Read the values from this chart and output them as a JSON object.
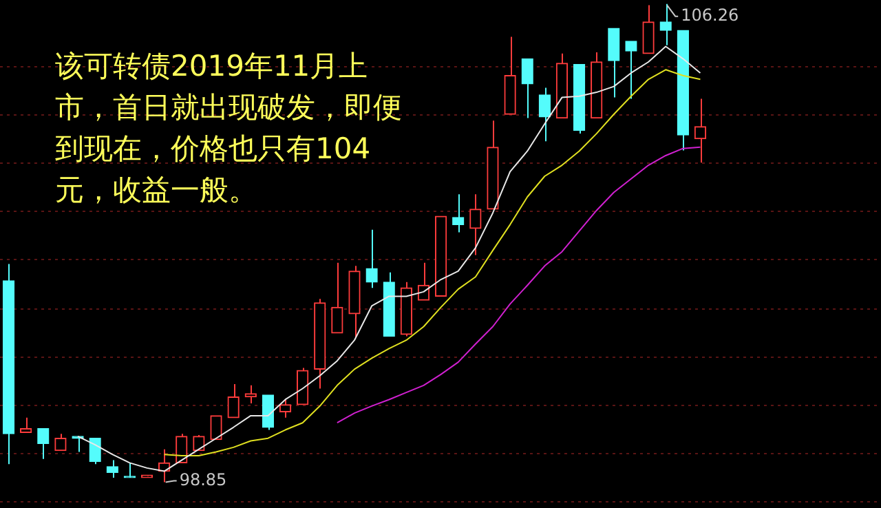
{
  "chart_data": {
    "type": "candlestick",
    "categories": [
      null,
      null,
      null,
      null,
      null,
      null,
      null,
      null,
      null,
      null,
      null,
      null,
      null,
      null,
      null,
      null,
      null,
      null,
      null,
      null,
      null,
      null,
      null,
      null,
      null,
      null,
      null,
      null,
      null,
      null,
      null,
      null,
      null,
      null,
      null,
      null,
      null,
      null,
      null,
      null,
      null
    ],
    "ohlc": [
      [
        101.97,
        102.23,
        99.13,
        99.6
      ],
      [
        99.62,
        99.85,
        99.62,
        99.68
      ],
      [
        99.68,
        99.68,
        99.21,
        99.45
      ],
      [
        99.34,
        99.6,
        99.34,
        99.53
      ],
      [
        99.56,
        99.56,
        99.32,
        99.53
      ],
      [
        99.53,
        99.53,
        99.13,
        99.17
      ],
      [
        99.09,
        99.19,
        98.92,
        99.0
      ],
      [
        98.94,
        99.15,
        98.92,
        98.92
      ],
      [
        98.92,
        98.96,
        98.92,
        98.96
      ],
      [
        99.02,
        99.36,
        98.85,
        99.15
      ],
      [
        99.15,
        99.6,
        99.15,
        99.56
      ],
      [
        99.34,
        99.58,
        99.34,
        99.56
      ],
      [
        99.51,
        99.88,
        99.51,
        99.88
      ],
      [
        99.85,
        100.37,
        99.85,
        100.17
      ],
      [
        100.17,
        100.35,
        100.07,
        100.22
      ],
      [
        100.2,
        100.2,
        99.66,
        99.7
      ],
      [
        99.94,
        100.13,
        99.85,
        100.05
      ],
      [
        100.05,
        100.62,
        100.05,
        100.58
      ],
      [
        100.6,
        101.69,
        100.3,
        101.63
      ],
      [
        101.16,
        102.25,
        101.16,
        101.56
      ],
      [
        101.46,
        102.2,
        101.09,
        102.12
      ],
      [
        102.16,
        102.76,
        101.86,
        101.95
      ],
      [
        101.95,
        102.1,
        101.11,
        101.11
      ],
      [
        101.14,
        101.95,
        101.11,
        101.86
      ],
      [
        101.67,
        102.25,
        101.67,
        101.9
      ],
      [
        101.73,
        102.97,
        101.73,
        102.97
      ],
      [
        102.95,
        103.31,
        102.72,
        102.84
      ],
      [
        102.78,
        103.31,
        102.37,
        103.08
      ],
      [
        103.08,
        104.45,
        103.08,
        104.04
      ],
      [
        104.55,
        105.75,
        104.55,
        105.15
      ],
      [
        105.41,
        105.41,
        104.49,
        105.02
      ],
      [
        104.85,
        104.96,
        104.13,
        104.51
      ],
      [
        104.49,
        105.49,
        104.49,
        105.34
      ],
      [
        105.32,
        105.32,
        104.25,
        104.3
      ],
      [
        104.49,
        105.51,
        104.49,
        105.36
      ],
      [
        105.88,
        105.88,
        104.81,
        105.38
      ],
      [
        105.68,
        105.68,
        104.79,
        105.53
      ],
      [
        105.49,
        106.24,
        105.49,
        105.98
      ],
      [
        105.98,
        106.26,
        105.62,
        105.85
      ],
      [
        105.85,
        105.85,
        103.99,
        104.23
      ],
      [
        104.17,
        104.79,
        103.8,
        104.36
      ]
    ],
    "colors": [
      "#54fcfc",
      "#ff3c3c",
      "#54fcfc",
      "#ff3c3c",
      "#54fcfc",
      "#54fcfc",
      "#54fcfc",
      "#54fcfc",
      "#ff3c3c",
      "#ff3c3c",
      "#ff3c3c",
      "#ff3c3c",
      "#ff3c3c",
      "#ff3c3c",
      "#ff3c3c",
      "#54fcfc",
      "#ff3c3c",
      "#ff3c3c",
      "#ff3c3c",
      "#ff3c3c",
      "#ff3c3c",
      "#54fcfc",
      "#54fcfc",
      "#ff3c3c",
      "#ff3c3c",
      "#ff3c3c",
      "#54fcfc",
      "#ff3c3c",
      "#ff3c3c",
      "#ff3c3c",
      "#54fcfc",
      "#54fcfc",
      "#ff3c3c",
      "#54fcfc",
      "#ff3c3c",
      "#54fcfc",
      "#54fcfc",
      "#ff3c3c",
      "#54fcfc",
      "#54fcfc",
      "#ff3c3c"
    ],
    "series": [
      {
        "type": "line",
        "color": "#e8e8e8",
        "values": [
          null,
          null,
          null,
          null,
          99.56,
          99.43,
          99.28,
          99.15,
          99.07,
          99.02,
          99.19,
          99.36,
          99.53,
          99.7,
          99.88,
          99.88,
          100.13,
          100.3,
          100.5,
          100.73,
          101.05,
          101.58,
          101.73,
          101.73,
          101.8,
          101.99,
          102.12,
          102.48,
          103.02,
          103.66,
          103.98,
          104.4,
          104.81,
          104.83,
          104.89,
          104.98,
          105.19,
          105.36,
          105.6,
          105.41,
          105.19
        ]
      },
      {
        "type": "line",
        "color": "#e0e020",
        "values": [
          null,
          null,
          null,
          null,
          null,
          null,
          null,
          null,
          null,
          99.28,
          99.26,
          99.26,
          99.32,
          99.39,
          99.49,
          99.53,
          99.66,
          99.77,
          100.03,
          100.35,
          100.6,
          100.77,
          100.92,
          101.05,
          101.26,
          101.56,
          101.84,
          102.03,
          102.44,
          102.84,
          103.27,
          103.59,
          103.76,
          103.98,
          104.25,
          104.55,
          104.83,
          105.09,
          105.24,
          105.15,
          105.09
        ]
      },
      {
        "type": "line",
        "color": "#d020d0",
        "values": [
          null,
          null,
          null,
          null,
          null,
          null,
          null,
          null,
          null,
          null,
          null,
          null,
          null,
          null,
          null,
          null,
          null,
          null,
          null,
          99.77,
          99.92,
          100.03,
          100.13,
          100.24,
          100.35,
          100.52,
          100.71,
          100.99,
          101.26,
          101.61,
          101.9,
          102.2,
          102.42,
          102.74,
          103.06,
          103.34,
          103.55,
          103.76,
          103.91,
          104.02,
          104.04
        ]
      }
    ],
    "ylim": [
      98.45,
      106.32
    ],
    "yticks": [
      {
        "value": 98.55,
        "label": null
      },
      {
        "value": 99.3,
        "label": null
      },
      {
        "value": 100.05,
        "label": null
      },
      {
        "value": 100.8,
        "label": null
      },
      {
        "value": 101.55,
        "label": null
      },
      {
        "value": 102.3,
        "label": null
      },
      {
        "value": 103.05,
        "label": null
      },
      {
        "value": 103.8,
        "label": null
      },
      {
        "value": 104.55,
        "label": null
      },
      {
        "value": 105.3,
        "label": null
      }
    ],
    "grid": "y",
    "legend": false,
    "annotations": [
      "该可转债2019年11月上市，首日就出现破发，即便到现在，价格也只有104元，收益一般。",
      "106.26",
      "98.85"
    ]
  }
}
